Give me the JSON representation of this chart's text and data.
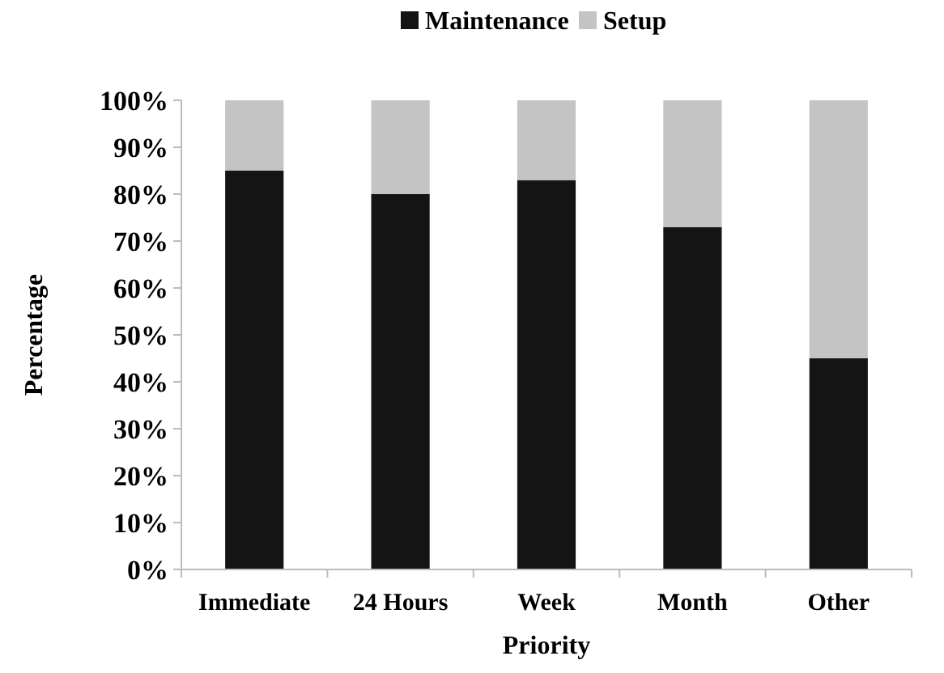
{
  "chart_data": {
    "type": "bar",
    "stacked": true,
    "xlabel": "Priority",
    "ylabel": "Percentage",
    "categories": [
      "Immediate",
      "24 Hours",
      "Week",
      "Month",
      "Other"
    ],
    "series": [
      {
        "name": "Maintenance",
        "color": "#141414",
        "values": [
          85,
          80,
          83,
          73,
          45
        ]
      },
      {
        "name": "Setup",
        "color": "#c4c4c4",
        "values": [
          15,
          20,
          17,
          27,
          55
        ]
      }
    ],
    "ylim": [
      0,
      100
    ],
    "yticks": [
      {
        "value": 0,
        "label": "0%"
      },
      {
        "value": 10,
        "label": "10%"
      },
      {
        "value": 20,
        "label": "20%"
      },
      {
        "value": 30,
        "label": "30%"
      },
      {
        "value": 40,
        "label": "40%"
      },
      {
        "value": 50,
        "label": "50%"
      },
      {
        "value": 60,
        "label": "60%"
      },
      {
        "value": 70,
        "label": "70%"
      },
      {
        "value": 80,
        "label": "80%"
      },
      {
        "value": 90,
        "label": "90%"
      },
      {
        "value": 100,
        "label": "100%"
      }
    ],
    "legend": "top",
    "grid": false
  }
}
